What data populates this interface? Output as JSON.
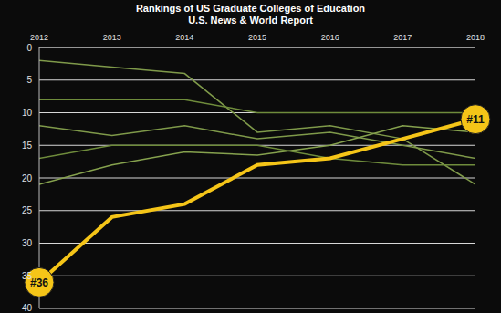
{
  "chart_data": {
    "type": "line",
    "title": "Rankings of US Graduate Colleges of Education",
    "subtitle": "U.S. News & World Report",
    "x": [
      2012,
      2013,
      2014,
      2015,
      2016,
      2017,
      2018
    ],
    "xlim": [
      2012,
      2018
    ],
    "xticks": [
      2012,
      2013,
      2014,
      2015,
      2016,
      2017,
      2018
    ],
    "ylim": [
      40,
      0
    ],
    "yticks": [
      0,
      5,
      10,
      15,
      20,
      25,
      30,
      35,
      40
    ],
    "grid": true,
    "series": [
      {
        "color": "#7f9a4a",
        "values": [
          2,
          3,
          4,
          13,
          12,
          14,
          21
        ]
      },
      {
        "color": "#6f8c3c",
        "values": [
          8,
          8,
          8,
          10,
          10,
          10,
          10
        ]
      },
      {
        "color": "#7f9a4a",
        "values": [
          12,
          13.5,
          12,
          14,
          13,
          15,
          17
        ]
      },
      {
        "color": "#6f8c3c",
        "values": [
          17,
          15,
          15,
          15,
          17,
          18,
          18
        ]
      },
      {
        "color": "#86a24e",
        "values": [
          21,
          18,
          16,
          16.5,
          15,
          12,
          13
        ]
      },
      {
        "color": "#f5c518",
        "values": [
          36,
          26,
          24,
          18,
          17,
          14,
          11
        ]
      }
    ],
    "annotations": [
      {
        "text": "#36",
        "x": 2012,
        "y": 36
      },
      {
        "text": "#11",
        "x": 2018,
        "y": 11
      }
    ]
  }
}
